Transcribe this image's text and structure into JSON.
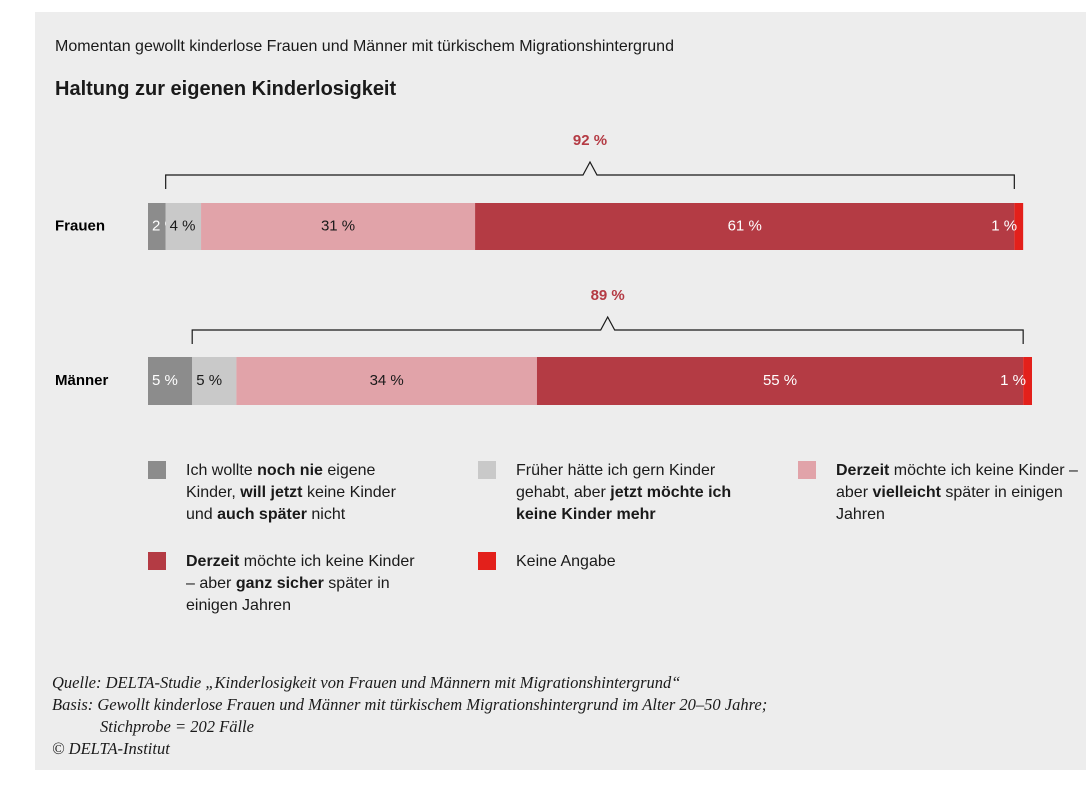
{
  "chart_data": {
    "type": "stacked-bar",
    "subtitle": "Momentan gewollt kinderlose Frauen und Männer mit türkischem Migrationshintergrund",
    "title": "Haltung zur eigenen Kinderlosigkeit",
    "categories": [
      "Frauen",
      "Männer"
    ],
    "xlim": [
      0,
      100
    ],
    "series": [
      {
        "name": [
          {
            "text": "Ich wollte "
          },
          {
            "text": "noch nie",
            "bold": true
          },
          {
            "text": " eigene Kinder, "
          },
          {
            "text": "will jetzt",
            "bold": true
          },
          {
            "text": " keine Kinder und "
          },
          {
            "text": "auch später",
            "bold": true
          },
          {
            "text": " nicht"
          }
        ],
        "color": "#8c8c8c",
        "text_color": "#ffffff",
        "values": [
          2,
          5
        ],
        "value_labels": [
          "2 %",
          "5 %"
        ]
      },
      {
        "name": [
          {
            "text": "Früher hätte ich gern Kinder gehabt, aber "
          },
          {
            "text": "jetzt möchte ich keine Kinder mehr",
            "bold": true
          }
        ],
        "color": "#c9c9c9",
        "text_color": "#1a1a1a",
        "values": [
          4,
          5
        ],
        "value_labels": [
          "4 %",
          "5 %"
        ]
      },
      {
        "name": [
          {
            "text": "Derzeit",
            "bold": true
          },
          {
            "text": " möchte ich keine Kinder – aber "
          },
          {
            "text": "vielleicht",
            "bold": true
          },
          {
            "text": " später in einigen Jahren"
          }
        ],
        "color": "#e1a3a9",
        "text_color": "#1a1a1a",
        "values": [
          31,
          34
        ],
        "value_labels": [
          "31 %",
          "34 %"
        ]
      },
      {
        "name": [
          {
            "text": "Derzeit",
            "bold": true
          },
          {
            "text": " möchte ich keine Kinder – aber "
          },
          {
            "text": "ganz sicher",
            "bold": true
          },
          {
            "text": " später in einigen Jahren"
          }
        ],
        "color": "#b43b44",
        "text_color": "#ffffff",
        "values": [
          61,
          55
        ],
        "value_labels": [
          "61 %",
          "55 %"
        ]
      },
      {
        "name": [
          {
            "text": "Keine Angabe"
          }
        ],
        "color": "#e3201b",
        "text_color": "#ffffff",
        "values": [
          1,
          1
        ],
        "value_labels": [
          "1 %",
          "1 %"
        ]
      }
    ],
    "bracket_totals": {
      "values": [
        92,
        89
      ],
      "value_labels": [
        "92 %",
        "89 %"
      ],
      "color": "#b43b44"
    },
    "notes": [
      "Quelle: DELTA-Studie „Kinderlosigkeit von Frauen und Männern mit Migrationshintergrund“",
      "Basis: Gewollt kinderlose Frauen und Männer mit türkischem Migrationshintergrund im Alter 20–50 Jahre;",
      "Stichprobe = 202 Fälle",
      "© DELTA-Institut"
    ]
  }
}
